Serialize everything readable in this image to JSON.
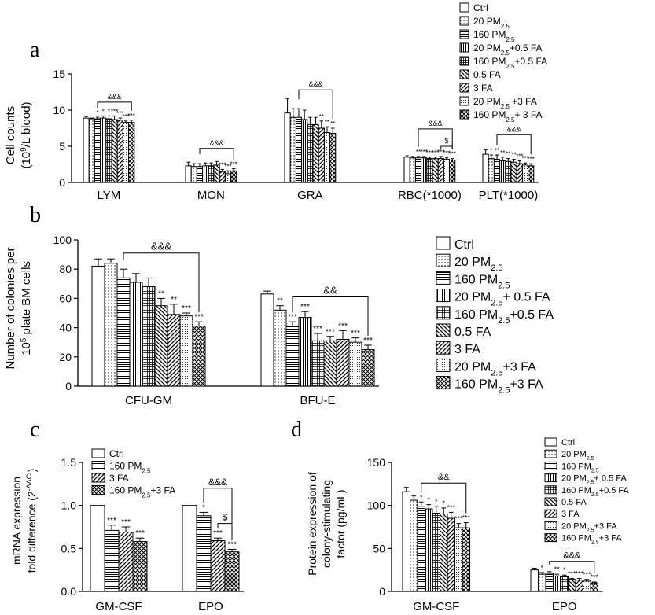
{
  "colors": {
    "ink": "#000000",
    "background": "#ffffff"
  },
  "panels": {
    "a": {
      "letter": "a"
    },
    "b": {
      "letter": "b"
    },
    "c": {
      "letter": "c"
    },
    "d": {
      "letter": "d"
    }
  },
  "chart_data": [
    {
      "id": "a",
      "type": "bar",
      "ylabel_line1": "Cell counts",
      "ylabel_line2": "(10^9/L blood)",
      "ylim": [
        0,
        15
      ],
      "yticks": [
        "0",
        "5",
        "10",
        "15"
      ],
      "categories": [
        "LYM",
        "MON",
        "GRA",
        "RBC(*1000)",
        "PLT(*1000)"
      ],
      "legend": [
        "Ctrl",
        "20 PM2.5",
        "160 PM2.5",
        "20 PM2.5+0.5 FA",
        "160 PM2.5+0.5 FA",
        "0.5 FA",
        "3 FA",
        "20 PM2.5 +3 FA",
        "160 PM2.5+ 3 FA"
      ],
      "patterns": [
        "white",
        "dots",
        "hlines",
        "vlines",
        "grid",
        "diagback",
        "diagfwd",
        "finedots",
        "cross"
      ],
      "values": [
        [
          8.9,
          8.8,
          8.8,
          8.9,
          8.8,
          8.7,
          8.6,
          8.3,
          8.3
        ],
        [
          2.3,
          2.2,
          2.2,
          2.3,
          2.3,
          2.4,
          1.5,
          1.2,
          1.6
        ],
        [
          9.6,
          9.0,
          9.0,
          8.7,
          8.0,
          8.0,
          7.5,
          6.9,
          6.8
        ],
        [
          3.5,
          3.4,
          3.4,
          3.4,
          3.3,
          3.3,
          3.3,
          3.2,
          3.1
        ],
        [
          3.9,
          3.3,
          3.2,
          3.0,
          2.9,
          2.8,
          2.6,
          2.4,
          2.3
        ]
      ],
      "errors": [
        [
          0.2,
          0.1,
          0.2,
          0.3,
          0.4,
          0.5,
          0.3,
          0.2,
          0.3
        ],
        [
          0.5,
          0.4,
          0.4,
          0.4,
          0.4,
          0.5,
          0.3,
          0.4,
          0.3
        ],
        [
          2.0,
          1.2,
          1.2,
          1.3,
          1.0,
          1.0,
          1.0,
          0.8,
          0.7
        ],
        [
          0.2,
          0.2,
          0.2,
          0.2,
          0.2,
          0.2,
          0.3,
          0.2,
          0.2
        ],
        [
          0.6,
          0.5,
          0.6,
          0.5,
          0.4,
          0.4,
          0.4,
          0.3,
          0.3
        ]
      ],
      "stars": [
        [
          "",
          "",
          "*",
          "*",
          "*",
          "***",
          "***",
          "***",
          "***"
        ],
        [
          "",
          "",
          "",
          "",
          "",
          "",
          "***",
          "***",
          "***"
        ],
        [
          "",
          "",
          "",
          "",
          "",
          "",
          "**",
          "**",
          "**"
        ],
        [
          "",
          "",
          "**",
          "***",
          "***",
          "***",
          "***",
          "***",
          "***"
        ],
        [
          "",
          "*",
          "**",
          "**",
          "**",
          "**",
          "***",
          "***",
          "***"
        ]
      ],
      "brackets": [
        {
          "label": "&&&",
          "group": 0,
          "from": 2,
          "to": 8,
          "y": 11.1
        },
        {
          "label": "&&&",
          "group": 1,
          "from": 2,
          "to": 8,
          "y": 4.7
        },
        {
          "label": "&&&",
          "group": 2,
          "from": 2,
          "to": 8,
          "y": 12.8
        },
        {
          "label": "&&&",
          "group": 3,
          "from": 2,
          "to": 8,
          "y": 7.4
        },
        {
          "label": "$",
          "group": 3,
          "from": 6,
          "to": 8,
          "y": 5.0
        },
        {
          "label": "&&&",
          "group": 4,
          "from": 2,
          "to": 8,
          "y": 6.6
        }
      ]
    },
    {
      "id": "b",
      "type": "bar",
      "ylabel_line1": "Number of colonies per",
      "ylabel_line2": "10^5 plate  BM cells",
      "ylim": [
        0,
        100
      ],
      "yticks": [
        "0",
        "20",
        "40",
        "60",
        "80",
        "100"
      ],
      "categories": [
        "CFU-GM",
        "BFU-E"
      ],
      "legend": [
        "Ctrl",
        "20  PM2.5",
        "160  PM2.5",
        "20 PM2.5+ 0.5 FA",
        "160 PM2.5+0.5 FA",
        "0.5 FA",
        "3 FA",
        "20 PM2.5+3 FA",
        "160 PM2.5+3 FA"
      ],
      "patterns": [
        "white",
        "dots",
        "hlines",
        "vlines",
        "grid",
        "diagback",
        "diagfwd",
        "finedots",
        "cross"
      ],
      "values": [
        [
          82,
          84,
          74,
          71,
          68,
          55,
          49,
          48,
          41
        ],
        [
          63,
          52,
          41,
          47,
          31,
          31,
          32,
          30,
          25
        ]
      ],
      "errors": [
        [
          5,
          3,
          6,
          6,
          6,
          5,
          7,
          2,
          3
        ],
        [
          2,
          3,
          3,
          4,
          5,
          3,
          6,
          3,
          3
        ]
      ],
      "stars": [
        [
          "",
          "",
          "",
          "",
          "",
          "**",
          "**",
          "***",
          "***"
        ],
        [
          "",
          "**",
          "***",
          "***",
          "***",
          "***",
          "***",
          "***",
          "***"
        ]
      ],
      "brackets": [
        {
          "label": "&&&",
          "group": 0,
          "from": 2,
          "to": 8,
          "y": 91
        },
        {
          "label": "&&",
          "group": 1,
          "from": 2,
          "to": 8,
          "y": 61
        }
      ]
    },
    {
      "id": "c",
      "type": "bar",
      "ylabel_line1": "mRNA expression",
      "ylabel_line2": "fold difference (2^-ΔΔCt)",
      "ylim": [
        0,
        1.5
      ],
      "yticks": [
        "0.0",
        "0.5",
        "1.0",
        "1.5"
      ],
      "categories": [
        "GM-CSF",
        "EPO"
      ],
      "legend": [
        "Ctrl",
        "160 PM2.5",
        "3  FA",
        "160 PM2.5+3 FA"
      ],
      "patterns": [
        "white",
        "hlines",
        "diagfwd",
        "cross"
      ],
      "values": [
        [
          1.0,
          0.71,
          0.69,
          0.58
        ],
        [
          1.0,
          0.88,
          0.59,
          0.46
        ]
      ],
      "errors": [
        [
          0.0,
          0.06,
          0.06,
          0.04
        ],
        [
          0.0,
          0.04,
          0.03,
          0.03
        ]
      ],
      "stars": [
        [
          "",
          "***",
          "***",
          "***"
        ],
        [
          "",
          "*",
          "***",
          "***"
        ]
      ],
      "brackets": [
        {
          "label": "&&&",
          "group": 1,
          "from": 1,
          "to": 3,
          "y": 1.2
        },
        {
          "label": "$",
          "group": 1,
          "from": 2,
          "to": 3,
          "y": 0.79
        }
      ]
    },
    {
      "id": "d",
      "type": "bar",
      "ylabel_line1": "Protein expression of",
      "ylabel_line2": "colony-stimulating",
      "ylabel_line3": "factor (pg/mL)",
      "ylim": [
        0,
        150
      ],
      "yticks": [
        "0",
        "50",
        "100",
        "150"
      ],
      "categories": [
        "GM-CSF",
        "EPO"
      ],
      "legend": [
        "Ctrl",
        "20  PM2.5",
        "160  PM2.5",
        "20 PM2.5+ 0.5 FA",
        "160 PM2.5+0.5 FA",
        "0.5 FA",
        "3 FA",
        "20 PM2.5+3 FA",
        "160 PM2.5+3 FA"
      ],
      "patterns": [
        "white",
        "dots",
        "hlines",
        "vlines",
        "grid",
        "diagback",
        "diagfwd",
        "finedots",
        "cross"
      ],
      "values": [
        [
          116,
          106,
          99,
          96,
          91,
          90,
          85,
          74,
          74
        ],
        [
          25,
          20,
          21,
          18,
          17,
          14,
          13,
          12,
          10
        ]
      ],
      "errors": [
        [
          5,
          5,
          5,
          5,
          8,
          7,
          7,
          5,
          6
        ],
        [
          2,
          2,
          2,
          2,
          2,
          1,
          2,
          2,
          1
        ]
      ],
      "stars": [
        [
          "",
          "",
          "*",
          "*",
          "*",
          "*",
          "***",
          "***",
          "***"
        ],
        [
          "",
          "*",
          "",
          "**",
          "*",
          "***",
          "***",
          "***",
          "***"
        ]
      ],
      "brackets": [
        {
          "label": "&&",
          "group": 0,
          "from": 2,
          "to": 8,
          "y": 126
        },
        {
          "label": "&&&",
          "group": 1,
          "from": 2,
          "to": 8,
          "y": 35
        }
      ]
    }
  ]
}
